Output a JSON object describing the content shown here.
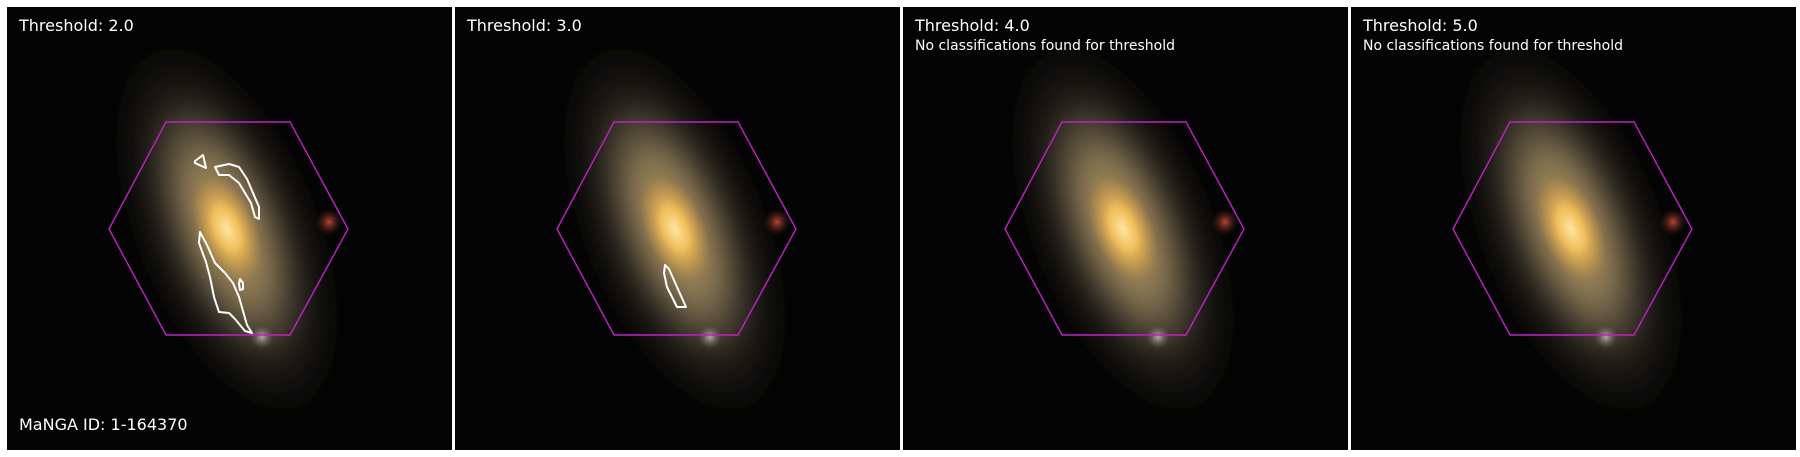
{
  "manga_id": "MaNGA ID: 1-164370",
  "panels": [
    {
      "title": "Threshold: 2.0",
      "note": ""
    },
    {
      "title": "Threshold: 3.0",
      "note": ""
    },
    {
      "title": "Threshold: 4.0",
      "note": "No classifications found for threshold"
    },
    {
      "title": "Threshold: 5.0",
      "note": "No classifications found for threshold"
    }
  ],
  "colors": {
    "hexagon": "#c020c8",
    "contour": "#ffffff",
    "background": "#050404",
    "galaxy_core": "#f3c05a"
  }
}
